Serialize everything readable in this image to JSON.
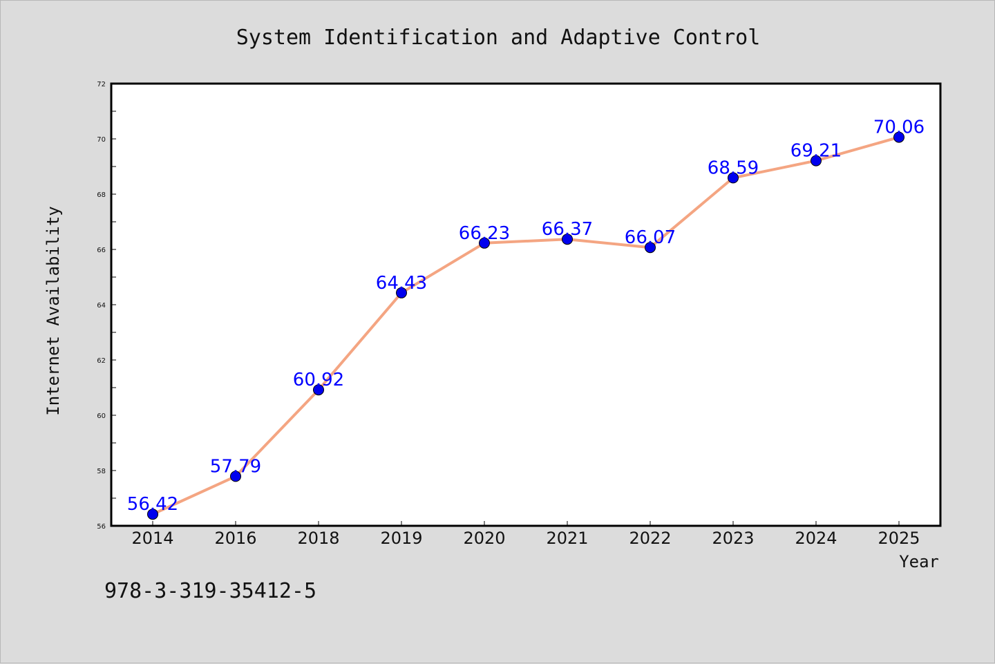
{
  "chart_data": {
    "type": "line",
    "title": "System Identification and Adaptive Control",
    "xlabel": "Year",
    "ylabel": "Internet Availability",
    "categories": [
      "2014",
      "2016",
      "2018",
      "2019",
      "2020",
      "2021",
      "2022",
      "2023",
      "2024",
      "2025"
    ],
    "series": [
      {
        "values": [
          56.42,
          57.79,
          60.92,
          64.43,
          66.23,
          66.37,
          66.07,
          68.59,
          69.21,
          70.06
        ],
        "line_color": "#f4a582",
        "marker_color": "#0000ee"
      }
    ],
    "data_labels": [
      "56.42",
      "57.79",
      "60.92",
      "64.43",
      "66.23",
      "66.37",
      "66.07",
      "68.59",
      "69.21",
      "70.06"
    ],
    "ylim": [
      56,
      72
    ],
    "yticks": [
      56,
      58,
      60,
      62,
      64,
      66,
      68,
      70,
      72
    ],
    "grid": false,
    "label_color": "#0000ff"
  },
  "annotation": "978-3-319-35412-5"
}
